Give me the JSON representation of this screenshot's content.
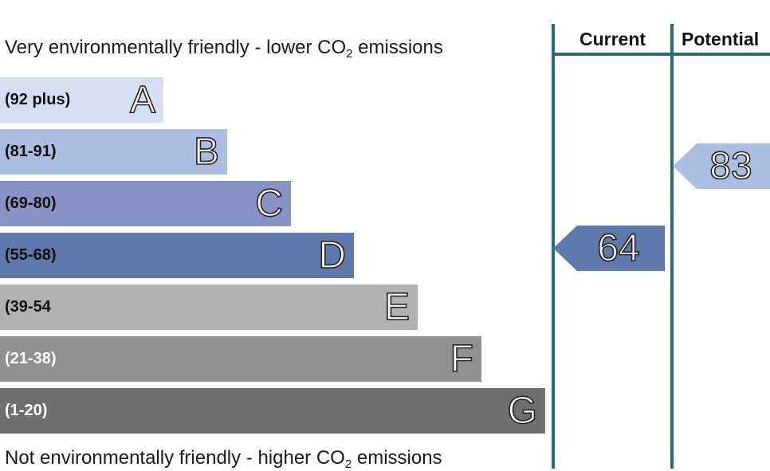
{
  "chart_data": {
    "type": "rating-scale",
    "caption_top": {
      "before": "Very environmentally friendly - lower CO",
      "sub": "2",
      "after": " emissions"
    },
    "caption_bottom": {
      "before": "Not environmentally friendly - higher CO",
      "sub": "2",
      "after": " emissions"
    },
    "columns": [
      "Current",
      "Potential"
    ],
    "bands": [
      {
        "letter": "A",
        "range": "(92 plus)",
        "color": "#d4e0f1",
        "text_color": "#111111"
      },
      {
        "letter": "B",
        "range": "(81-91)",
        "color": "#a9bee0",
        "text_color": "#111111"
      },
      {
        "letter": "C",
        "range": "(69-80)",
        "color": "#8793c4",
        "text_color": "#111111"
      },
      {
        "letter": "D",
        "range": "(55-68)",
        "color": "#5f79ad",
        "text_color": "#111111"
      },
      {
        "letter": "E",
        "range": "(39-54",
        "color": "#b1b1b1",
        "text_color": "#111111"
      },
      {
        "letter": "F",
        "range": "(21-38)",
        "color": "#8f8f8f",
        "text_color": "#ffffff"
      },
      {
        "letter": "G",
        "range": "(1-20)",
        "color": "#6f6f6f",
        "text_color": "#ffffff"
      }
    ],
    "ratings": {
      "current": {
        "value": 64,
        "band": "D",
        "color": "#5f79ad"
      },
      "potential": {
        "value": 83,
        "band": "B",
        "color": "#a9bee0"
      }
    }
  }
}
